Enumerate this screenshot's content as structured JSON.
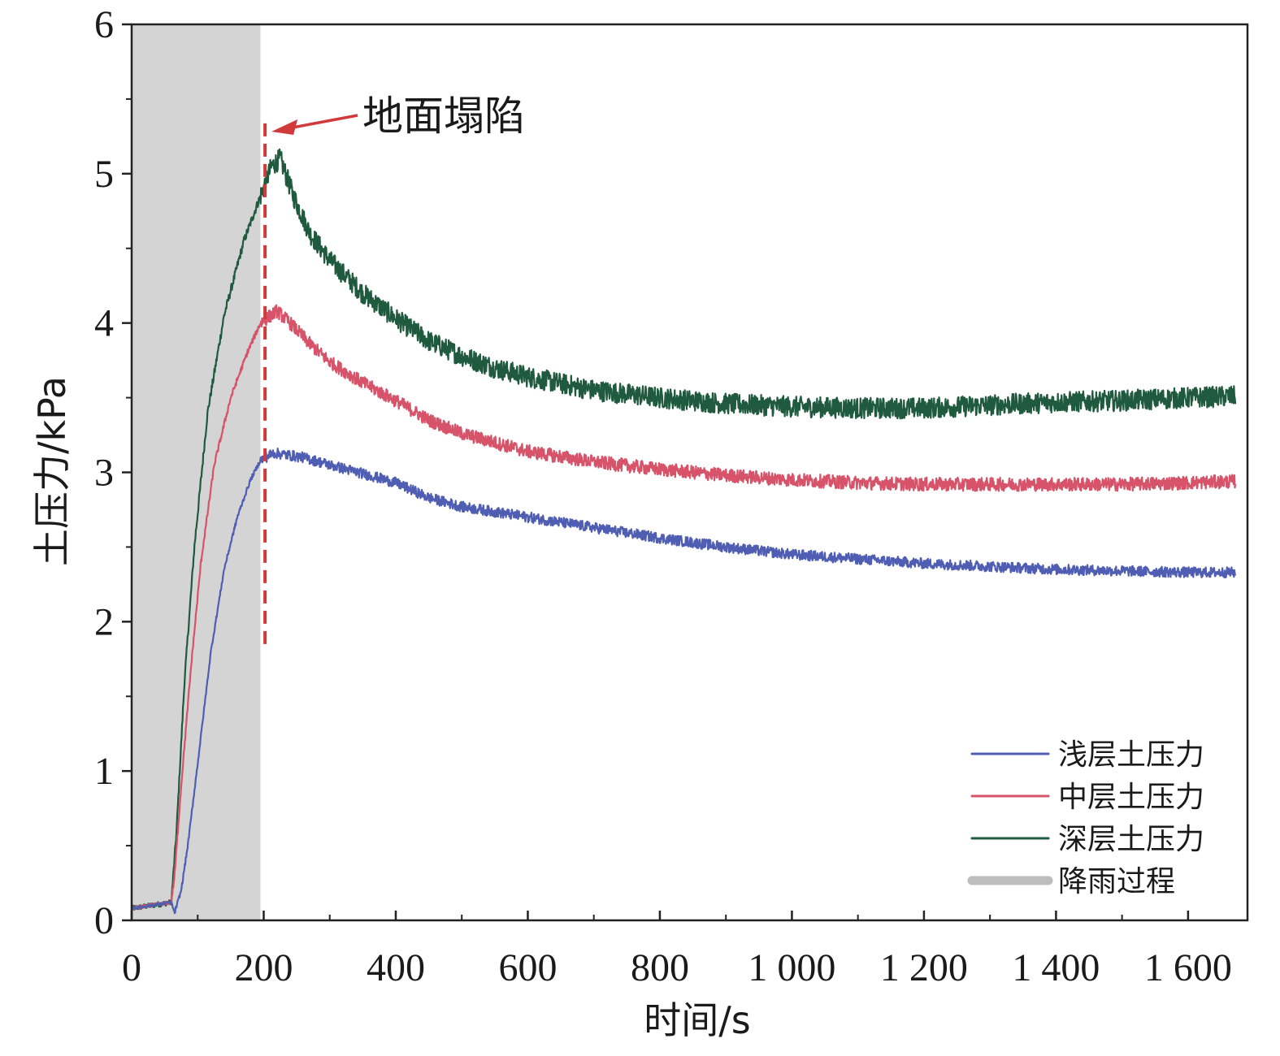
{
  "chart_data": {
    "type": "line",
    "xlabel": "时间/s",
    "ylabel": "土压力/kPa",
    "xlim": [
      0,
      1690
    ],
    "ylim": [
      0,
      6
    ],
    "x_ticks": [
      0,
      200,
      400,
      600,
      800,
      1000,
      1200,
      1400,
      1600
    ],
    "x_tick_labels": [
      "0",
      "200",
      "400",
      "600",
      "800",
      "1 000",
      "1 200",
      "1 400",
      "1 600"
    ],
    "y_ticks": [
      0,
      1,
      2,
      3,
      4,
      5,
      6
    ],
    "y_tick_labels": [
      "0",
      "1",
      "2",
      "3",
      "4",
      "5",
      "6"
    ],
    "grid": false,
    "legend_position": "bottom-right",
    "rain_period": {
      "label": "降雨过程",
      "x_start": 0,
      "x_end": 195,
      "color": "#d4d4d4"
    },
    "collapse_marker": {
      "label": "地面塌陷",
      "x": 202,
      "y_from": 1.85,
      "y_to": 5.35,
      "color": "#d03a3a"
    },
    "series": [
      {
        "name": "浅层土压力",
        "color": "#4f5eb3",
        "noise": 0.035,
        "points": [
          [
            0,
            0.08
          ],
          [
            60,
            0.12
          ],
          [
            65,
            0.05
          ],
          [
            75,
            0.2
          ],
          [
            85,
            0.5
          ],
          [
            100,
            1.05
          ],
          [
            120,
            1.8
          ],
          [
            140,
            2.35
          ],
          [
            160,
            2.7
          ],
          [
            180,
            2.95
          ],
          [
            195,
            3.08
          ],
          [
            215,
            3.13
          ],
          [
            260,
            3.1
          ],
          [
            300,
            3.05
          ],
          [
            360,
            2.98
          ],
          [
            400,
            2.93
          ],
          [
            450,
            2.83
          ],
          [
            500,
            2.77
          ],
          [
            600,
            2.7
          ],
          [
            700,
            2.63
          ],
          [
            800,
            2.56
          ],
          [
            900,
            2.5
          ],
          [
            1000,
            2.45
          ],
          [
            1100,
            2.42
          ],
          [
            1200,
            2.39
          ],
          [
            1300,
            2.37
          ],
          [
            1400,
            2.35
          ],
          [
            1500,
            2.34
          ],
          [
            1600,
            2.33
          ],
          [
            1672,
            2.33
          ]
        ]
      },
      {
        "name": "中层土压力",
        "color": "#d6536a",
        "noise": 0.045,
        "points": [
          [
            0,
            0.08
          ],
          [
            60,
            0.12
          ],
          [
            65,
            0.3
          ],
          [
            75,
            0.9
          ],
          [
            90,
            1.7
          ],
          [
            105,
            2.4
          ],
          [
            125,
            3.05
          ],
          [
            150,
            3.5
          ],
          [
            175,
            3.8
          ],
          [
            195,
            4.0
          ],
          [
            220,
            4.08
          ],
          [
            240,
            4.0
          ],
          [
            270,
            3.86
          ],
          [
            300,
            3.74
          ],
          [
            350,
            3.6
          ],
          [
            400,
            3.48
          ],
          [
            450,
            3.35
          ],
          [
            500,
            3.26
          ],
          [
            600,
            3.14
          ],
          [
            700,
            3.07
          ],
          [
            800,
            3.02
          ],
          [
            900,
            2.98
          ],
          [
            1000,
            2.95
          ],
          [
            1100,
            2.93
          ],
          [
            1200,
            2.92
          ],
          [
            1300,
            2.92
          ],
          [
            1400,
            2.92
          ],
          [
            1500,
            2.92
          ],
          [
            1600,
            2.93
          ],
          [
            1672,
            2.94
          ]
        ]
      },
      {
        "name": "深层土压力",
        "color": "#1f5a3e",
        "noise": 0.07,
        "points": [
          [
            0,
            0.08
          ],
          [
            60,
            0.12
          ],
          [
            68,
            0.6
          ],
          [
            80,
            1.6
          ],
          [
            95,
            2.5
          ],
          [
            115,
            3.4
          ],
          [
            140,
            4.05
          ],
          [
            170,
            4.55
          ],
          [
            195,
            4.85
          ],
          [
            212,
            5.05
          ],
          [
            225,
            5.1
          ],
          [
            245,
            4.85
          ],
          [
            270,
            4.6
          ],
          [
            300,
            4.42
          ],
          [
            350,
            4.2
          ],
          [
            400,
            4.03
          ],
          [
            450,
            3.88
          ],
          [
            500,
            3.78
          ],
          [
            550,
            3.7
          ],
          [
            600,
            3.64
          ],
          [
            700,
            3.55
          ],
          [
            800,
            3.5
          ],
          [
            900,
            3.46
          ],
          [
            1000,
            3.44
          ],
          [
            1100,
            3.43
          ],
          [
            1200,
            3.43
          ],
          [
            1300,
            3.45
          ],
          [
            1400,
            3.47
          ],
          [
            1500,
            3.48
          ],
          [
            1600,
            3.5
          ],
          [
            1672,
            3.51
          ]
        ]
      }
    ]
  }
}
